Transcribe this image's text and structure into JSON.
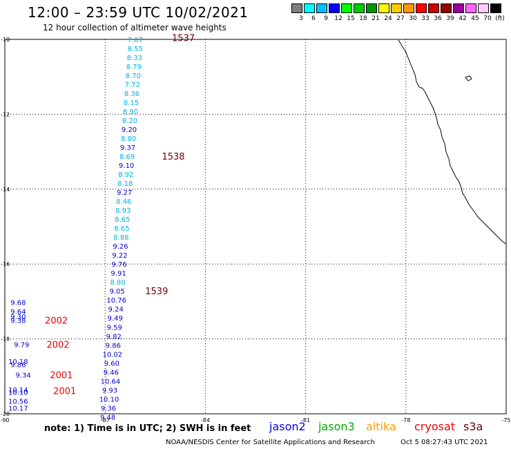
{
  "header": {
    "title": "12:00 – 23:59 UTC 10/02/2021",
    "subtitle": "12 hour collection of altimeter wave heights"
  },
  "legend": {
    "colors": [
      "#808080",
      "#00ffff",
      "#00c0ff",
      "#0000ff",
      "#00ff00",
      "#00cc00",
      "#009900",
      "#ffff00",
      "#ffcc00",
      "#ff9900",
      "#ff0000",
      "#cc0000",
      "#990000",
      "#990099",
      "#ff66ff",
      "#ffccff",
      "#000000"
    ],
    "labels": [
      "3",
      "6",
      "9",
      "12",
      "15",
      "18",
      "21",
      "24",
      "27",
      "30",
      "33",
      "36",
      "39",
      "42",
      "45",
      "70",
      "(ft)"
    ]
  },
  "map": {
    "lat_labels": [
      "-10",
      "-12",
      "-14",
      "-16",
      "-18",
      "-20"
    ],
    "lon_labels": [
      "-90",
      "-87",
      "-84",
      "-81",
      "-78",
      "-75"
    ],
    "lat_range": [
      -20,
      -10
    ],
    "lon_range": [
      -90,
      -75
    ]
  },
  "observations": [
    {
      "lat": -10.0,
      "lon": -86.1,
      "value": "7.07",
      "color": "#00b0e0"
    },
    {
      "lat": -10.24,
      "lon": -86.1,
      "value": "8.55",
      "color": "#00b0e0"
    },
    {
      "lat": -10.48,
      "lon": -86.12,
      "value": "8.33",
      "color": "#00b0e0"
    },
    {
      "lat": -10.72,
      "lon": -86.14,
      "value": "8.79",
      "color": "#00b0e0"
    },
    {
      "lat": -10.96,
      "lon": -86.16,
      "value": "8.70",
      "color": "#00b0e0"
    },
    {
      "lat": -11.2,
      "lon": -86.18,
      "value": "7.72",
      "color": "#00b0e0"
    },
    {
      "lat": -11.44,
      "lon": -86.2,
      "value": "8.36",
      "color": "#00b0e0"
    },
    {
      "lat": -11.68,
      "lon": -86.22,
      "value": "8.15",
      "color": "#00b0e0"
    },
    {
      "lat": -11.92,
      "lon": -86.24,
      "value": "8.90",
      "color": "#00b0e0"
    },
    {
      "lat": -12.16,
      "lon": -86.26,
      "value": "8.20",
      "color": "#00b0e0"
    },
    {
      "lat": -12.4,
      "lon": -86.28,
      "value": "9.20",
      "color": "#0000cc"
    },
    {
      "lat": -12.64,
      "lon": -86.3,
      "value": "8.80",
      "color": "#00b0e0"
    },
    {
      "lat": -12.88,
      "lon": -86.32,
      "value": "9.37",
      "color": "#0000cc"
    },
    {
      "lat": -13.12,
      "lon": -86.34,
      "value": "8.69",
      "color": "#00b0e0"
    },
    {
      "lat": -13.36,
      "lon": -86.36,
      "value": "9.10",
      "color": "#0000cc"
    },
    {
      "lat": -13.6,
      "lon": -86.38,
      "value": "8.92",
      "color": "#00b0e0"
    },
    {
      "lat": -13.84,
      "lon": -86.4,
      "value": "8.18",
      "color": "#00b0e0"
    },
    {
      "lat": -14.08,
      "lon": -86.42,
      "value": "9.27",
      "color": "#0000cc"
    },
    {
      "lat": -14.32,
      "lon": -86.44,
      "value": "8.46",
      "color": "#00b0e0"
    },
    {
      "lat": -14.56,
      "lon": -86.46,
      "value": "8.93",
      "color": "#00b0e0"
    },
    {
      "lat": -14.8,
      "lon": -86.48,
      "value": "8.65",
      "color": "#00b0e0"
    },
    {
      "lat": -15.04,
      "lon": -86.5,
      "value": "8.65",
      "color": "#00b0e0"
    },
    {
      "lat": -15.28,
      "lon": -86.52,
      "value": "8.88",
      "color": "#00b0e0"
    },
    {
      "lat": -15.52,
      "lon": -86.54,
      "value": "9.26",
      "color": "#0000cc"
    },
    {
      "lat": -15.76,
      "lon": -86.56,
      "value": "9.22",
      "color": "#0000cc"
    },
    {
      "lat": -16.0,
      "lon": -86.58,
      "value": "9.76",
      "color": "#0000cc"
    },
    {
      "lat": -16.24,
      "lon": -86.6,
      "value": "9.91",
      "color": "#0000cc"
    },
    {
      "lat": -16.48,
      "lon": -86.62,
      "value": "8.80",
      "color": "#00b0e0"
    },
    {
      "lat": -16.72,
      "lon": -86.64,
      "value": "9.05",
      "color": "#0000cc"
    },
    {
      "lat": -16.96,
      "lon": -86.66,
      "value": "10.76",
      "color": "#0000cc"
    },
    {
      "lat": -17.2,
      "lon": -86.68,
      "value": "9.24",
      "color": "#0000cc"
    },
    {
      "lat": -17.44,
      "lon": -86.7,
      "value": "9.49",
      "color": "#0000cc"
    },
    {
      "lat": -17.68,
      "lon": -86.72,
      "value": "9.59",
      "color": "#0000cc"
    },
    {
      "lat": -17.92,
      "lon": -86.74,
      "value": "9.82",
      "color": "#0000cc"
    },
    {
      "lat": -18.16,
      "lon": -86.76,
      "value": "9.86",
      "color": "#0000cc"
    },
    {
      "lat": -18.4,
      "lon": -86.78,
      "value": "10.02",
      "color": "#0000cc"
    },
    {
      "lat": -18.64,
      "lon": -86.8,
      "value": "9.60",
      "color": "#0000cc"
    },
    {
      "lat": -18.88,
      "lon": -86.82,
      "value": "9.46",
      "color": "#0000cc"
    },
    {
      "lat": -19.12,
      "lon": -86.84,
      "value": "10.64",
      "color": "#0000cc"
    },
    {
      "lat": -19.36,
      "lon": -86.86,
      "value": "9.93",
      "color": "#0000cc"
    },
    {
      "lat": -19.6,
      "lon": -86.88,
      "value": "10.10",
      "color": "#0000cc"
    },
    {
      "lat": -19.84,
      "lon": -86.9,
      "value": "9.36",
      "color": "#0000cc"
    },
    {
      "lat": -20.08,
      "lon": -86.92,
      "value": "9.48",
      "color": "#0000cc"
    },
    {
      "lat": -17.02,
      "lon": -89.6,
      "value": "9.68",
      "color": "#0000cc"
    },
    {
      "lat": -17.26,
      "lon": -89.6,
      "value": "9.64",
      "color": "#0000cc"
    },
    {
      "lat": -17.4,
      "lon": -89.6,
      "value": "9.30",
      "color": "#0000cc"
    },
    {
      "lat": -17.5,
      "lon": -89.6,
      "value": "9.38",
      "color": "#0000cc"
    },
    {
      "lat": -18.15,
      "lon": -89.5,
      "value": "9.79",
      "color": "#0000cc"
    },
    {
      "lat": -18.6,
      "lon": -89.6,
      "value": "10.18",
      "color": "#0000cc"
    },
    {
      "lat": -18.68,
      "lon": -89.6,
      "value": "9.86",
      "color": "#0000cc"
    },
    {
      "lat": -18.96,
      "lon": -89.45,
      "value": "9.34",
      "color": "#0000cc"
    },
    {
      "lat": -19.35,
      "lon": -89.6,
      "value": "10.14",
      "color": "#0000cc"
    },
    {
      "lat": -19.42,
      "lon": -89.6,
      "value": "10.10",
      "color": "#0000cc"
    },
    {
      "lat": -19.66,
      "lon": -89.6,
      "value": "10.56",
      "color": "#0000cc"
    },
    {
      "lat": -19.84,
      "lon": -89.6,
      "value": "10.17",
      "color": "#0000cc"
    }
  ],
  "time_labels": [
    {
      "lat": -9.95,
      "lon": -85.0,
      "value": "1537",
      "color": "#660000"
    },
    {
      "lat": -13.12,
      "lon": -85.3,
      "value": "1538",
      "color": "#660000"
    },
    {
      "lat": -16.72,
      "lon": -85.8,
      "value": "1539",
      "color": "#660000"
    },
    {
      "lat": -17.5,
      "lon": -88.8,
      "value": "2002",
      "color": "#ee0000"
    },
    {
      "lat": -18.15,
      "lon": -88.75,
      "value": "2002",
      "color": "#ee0000"
    },
    {
      "lat": -18.96,
      "lon": -88.65,
      "value": "2001",
      "color": "#ee0000"
    },
    {
      "lat": -19.38,
      "lon": -88.55,
      "value": "2001",
      "color": "#ee0000"
    }
  ],
  "footer": {
    "note": "note: 1) Time is in UTC; 2) SWH is in feet",
    "satellites": [
      {
        "name": "jason2",
        "color": "#0000ee"
      },
      {
        "name": "jason3",
        "color": "#00aa00"
      },
      {
        "name": "altika",
        "color": "#ff9900"
      },
      {
        "name": "cryosat",
        "color": "#ee0000"
      },
      {
        "name": "s3a",
        "color": "#660000"
      }
    ],
    "credit": "NOAA/NESDIS Center for Satellite Applications and Research",
    "timestamp": "Oct  5 08:27:43 UTC 2021"
  }
}
